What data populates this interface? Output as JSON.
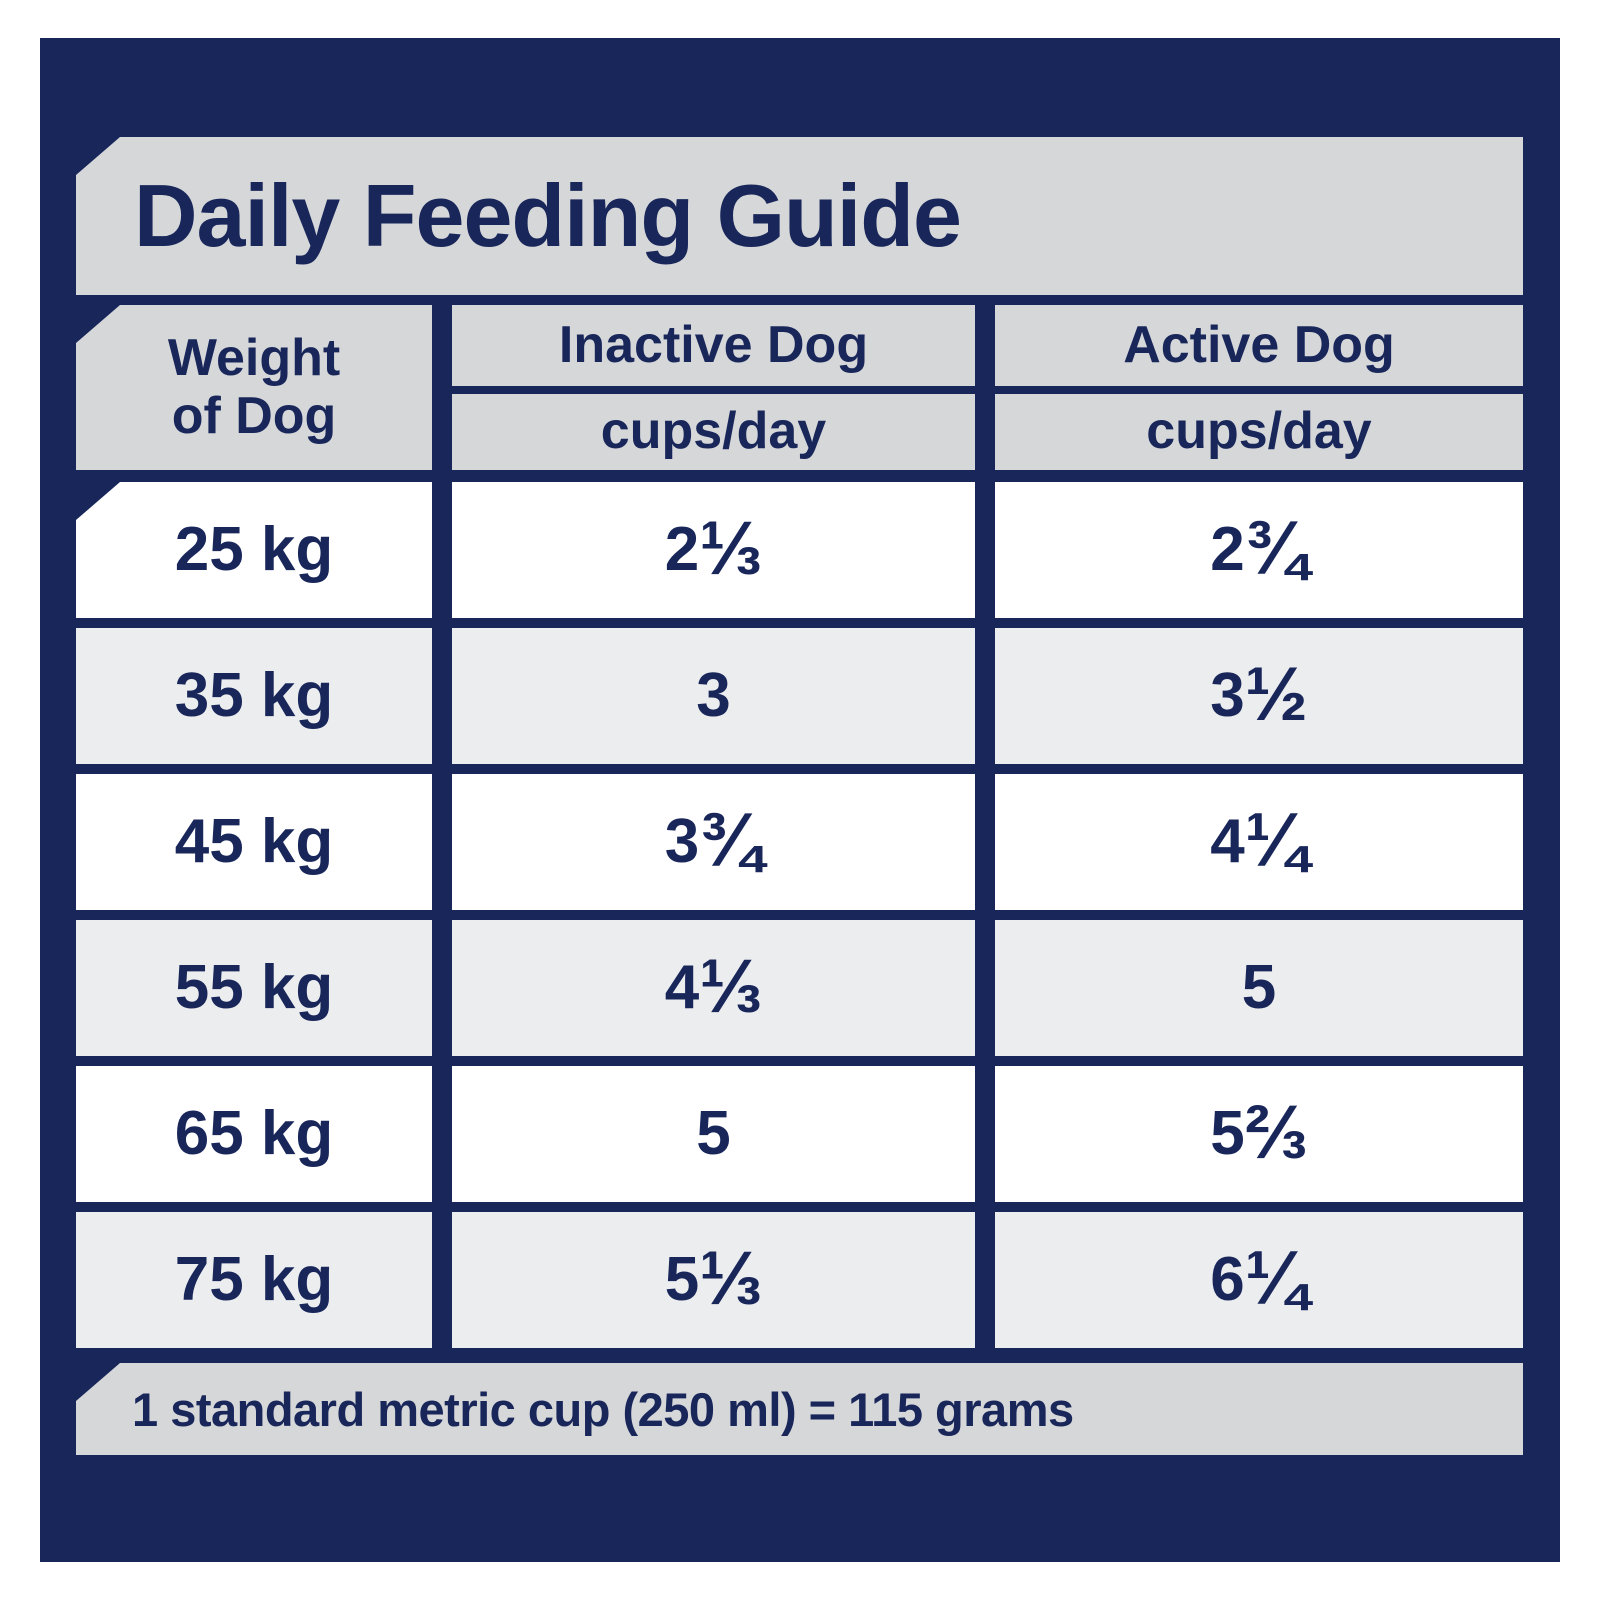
{
  "colors": {
    "navy": "#18265a",
    "banner_gray": "#d6d7d9",
    "row_gray": "#ecedee",
    "row_white": "#ffffff"
  },
  "title": "Daily Feeding Guide",
  "table": {
    "weight_header": [
      "Weight",
      "of Dog"
    ],
    "columns": [
      {
        "label": "Inactive Dog",
        "unit": "cups/day"
      },
      {
        "label": "Active Dog",
        "unit": "cups/day"
      }
    ],
    "rows": [
      {
        "weight": "25 kg",
        "inactive": "2 ⅓",
        "active": "2 ¾"
      },
      {
        "weight": "35 kg",
        "inactive": "3",
        "active": "3 ½"
      },
      {
        "weight": "45 kg",
        "inactive": "3 ¾",
        "active": "4 ¼"
      },
      {
        "weight": "55 kg",
        "inactive": "4 ⅓",
        "active": "5"
      },
      {
        "weight": "65 kg",
        "inactive": "5",
        "active": "5 ⅔"
      },
      {
        "weight": "75 kg",
        "inactive": "5 ⅓",
        "active": "6 ¼"
      }
    ]
  },
  "footnote": "1 standard metric cup (250 ml) = 115 grams",
  "chart_data": {
    "type": "table",
    "title": "Daily Feeding Guide",
    "columns": [
      "Weight of Dog",
      "Inactive Dog (cups/day)",
      "Active Dog (cups/day)"
    ],
    "rows": [
      [
        "25 kg",
        "2 1/3",
        "2 3/4"
      ],
      [
        "35 kg",
        "3",
        "3 1/2"
      ],
      [
        "45 kg",
        "3 3/4",
        "4 1/4"
      ],
      [
        "55 kg",
        "4 1/3",
        "5"
      ],
      [
        "65 kg",
        "5",
        "5 2/3"
      ],
      [
        "75 kg",
        "5 1/3",
        "6 1/4"
      ]
    ],
    "weights_kg": [
      25,
      35,
      45,
      55,
      65,
      75
    ],
    "inactive_cups_per_day": [
      2.33,
      3,
      3.75,
      4.33,
      5,
      5.33
    ],
    "active_cups_per_day": [
      2.75,
      3.5,
      4.25,
      5,
      5.67,
      6.25
    ],
    "note": "1 standard metric cup (250 ml) = 115 grams"
  }
}
